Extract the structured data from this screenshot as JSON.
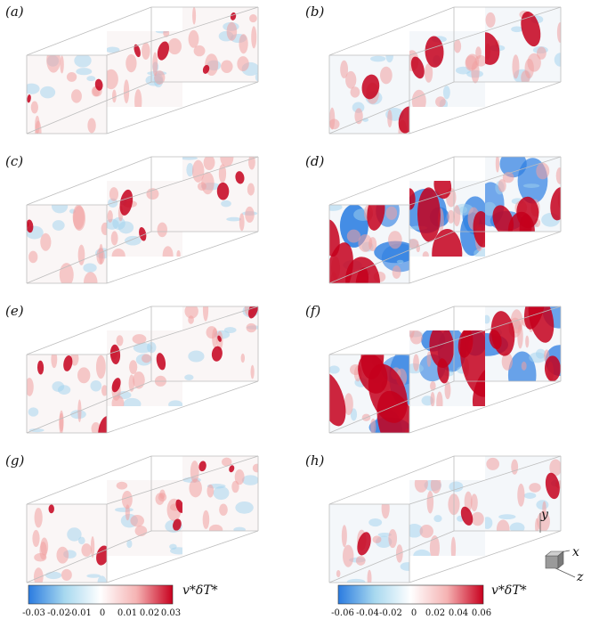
{
  "panels": [
    {
      "label": "(a)",
      "scale": "small",
      "intensity": 0.35
    },
    {
      "label": "(b)",
      "scale": "large",
      "intensity": 0.45
    },
    {
      "label": "(c)",
      "scale": "small",
      "intensity": 0.45
    },
    {
      "label": "(d)",
      "scale": "large",
      "intensity": 0.9
    },
    {
      "label": "(e)",
      "scale": "small",
      "intensity": 0.55
    },
    {
      "label": "(f)",
      "scale": "large",
      "intensity": 1.0
    },
    {
      "label": "(g)",
      "scale": "small",
      "intensity": 0.45
    },
    {
      "label": "(h)",
      "scale": "large",
      "intensity": 0.15
    }
  ],
  "colorbars": [
    {
      "title": "v*δT*",
      "ticks": [
        "-0.03",
        "-0.02",
        "-0.01",
        "0",
        "0.01",
        "0.02",
        "0.03"
      ],
      "colors": [
        "#2a7be0",
        "#a7d8ef",
        "#ffffff",
        "#f5b3b3",
        "#c8001e"
      ]
    },
    {
      "title": "v*δT*",
      "ticks": [
        "-0.06",
        "-0.04",
        "-0.02",
        "0",
        "0.02",
        "0.04",
        "0.06"
      ],
      "colors": [
        "#2a7be0",
        "#a7d8ef",
        "#ffffff",
        "#f5b3b3",
        "#c8001e"
      ]
    }
  ],
  "axes": {
    "y": "y",
    "x": "x",
    "z": "z"
  }
}
